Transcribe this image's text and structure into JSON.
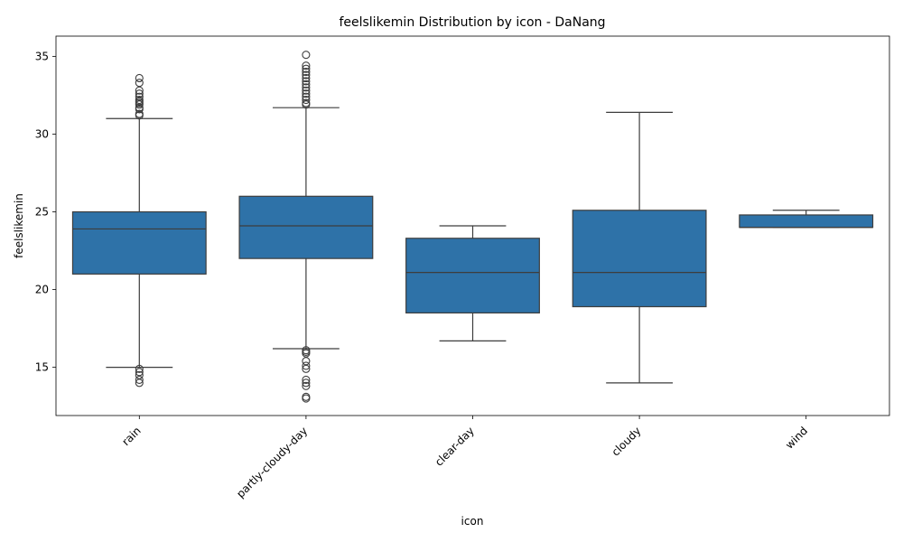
{
  "chart_data": {
    "type": "box",
    "title": "feelslikemin Distribution by icon - DaNang",
    "xlabel": "icon",
    "ylabel": "feelslikemin",
    "ylim": [
      11.9,
      36.3
    ],
    "yticks": [
      15,
      20,
      25,
      30,
      35
    ],
    "grid": false,
    "box_color": "#2e72a8",
    "line_color": "#3d3d3d",
    "categories": [
      "rain",
      "partly-cloudy-day",
      "clear-day",
      "cloudy",
      "wind"
    ],
    "boxes": [
      {
        "category": "rain",
        "whisker_low": 15.0,
        "q1": 21.0,
        "median": 23.9,
        "q3": 25.0,
        "whisker_high": 31.0,
        "outliers": [
          31.2,
          31.3,
          31.6,
          31.7,
          31.9,
          32.0,
          32.1,
          32.2,
          32.4,
          32.6,
          32.8,
          33.3,
          33.6,
          14.9,
          14.7,
          14.5,
          14.2,
          14.0
        ]
      },
      {
        "category": "partly-cloudy-day",
        "whisker_low": 16.2,
        "q1": 22.0,
        "median": 24.1,
        "q3": 26.0,
        "whisker_high": 31.7,
        "outliers": [
          31.9,
          32.0,
          32.2,
          32.4,
          32.6,
          32.8,
          33.0,
          33.2,
          33.4,
          33.6,
          33.8,
          34.0,
          34.2,
          34.4,
          35.1,
          16.1,
          16.0,
          15.9,
          15.4,
          15.1,
          14.9,
          14.2,
          14.0,
          13.8,
          13.1,
          13.0
        ]
      },
      {
        "category": "clear-day",
        "whisker_low": 16.7,
        "q1": 18.5,
        "median": 21.1,
        "q3": 23.3,
        "whisker_high": 24.1,
        "outliers": []
      },
      {
        "category": "cloudy",
        "whisker_low": 14.0,
        "q1": 18.9,
        "median": 21.1,
        "q3": 25.1,
        "whisker_high": 31.4,
        "outliers": []
      },
      {
        "category": "wind",
        "whisker_low": 24.0,
        "q1": 24.0,
        "median": 24.0,
        "q3": 24.8,
        "whisker_high": 25.1,
        "outliers": []
      }
    ]
  }
}
